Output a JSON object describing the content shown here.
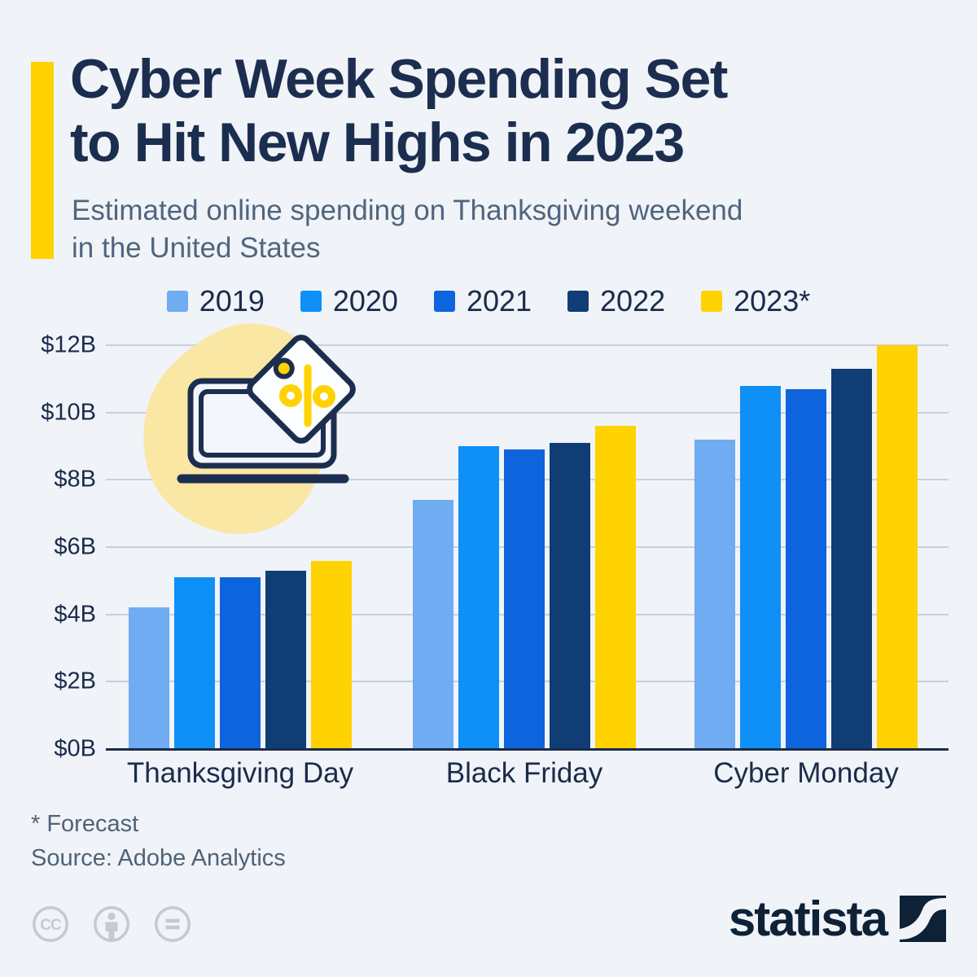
{
  "header": {
    "title_line1": "Cyber Week Spending Set",
    "title_line2": "to Hit New Highs in 2023",
    "subtitle_line1": "Estimated online spending on Thanksgiving weekend",
    "subtitle_line2": "in the United States"
  },
  "chart_data": {
    "type": "bar",
    "title": "Cyber Week Spending Set to Hit New Highs in 2023",
    "subtitle": "Estimated online spending on Thanksgiving weekend in the United States",
    "categories": [
      "Thanksgiving Day",
      "Black Friday",
      "Cyber Monday"
    ],
    "series": [
      {
        "name": "2019",
        "color": "#6FACF1",
        "values": [
          4.2,
          7.4,
          9.2
        ]
      },
      {
        "name": "2020",
        "color": "#0F90F6",
        "values": [
          5.1,
          9.0,
          10.8
        ]
      },
      {
        "name": "2021",
        "color": "#0D64DC",
        "values": [
          5.1,
          8.9,
          10.7
        ]
      },
      {
        "name": "2022",
        "color": "#0F3D74",
        "values": [
          5.3,
          9.1,
          11.3
        ]
      },
      {
        "name": "2023*",
        "color": "#FFD201",
        "values": [
          5.6,
          9.6,
          12.0
        ]
      }
    ],
    "yticks": [
      0,
      2,
      4,
      6,
      8,
      10,
      12
    ],
    "ytick_labels": [
      "$0B",
      "$2B",
      "$4B",
      "$6B",
      "$8B",
      "$10B",
      "$12B"
    ],
    "ylim": [
      0,
      12
    ],
    "grid": true,
    "legend_position": "top"
  },
  "footer": {
    "footnote": "* Forecast",
    "source": "Source: Adobe Analytics",
    "brand": "statista"
  },
  "icons": {
    "cc_label": "CC",
    "cc_icons": [
      "creative-commons",
      "attribution-person",
      "no-derivatives-equals"
    ],
    "illustration": "laptop-with-percent-price-tag"
  },
  "colors": {
    "background": "#F0F3F8",
    "accent_yellow": "#FFD201",
    "title_navy": "#1C2E4F",
    "subtitle_gray": "#50657D",
    "grid_gray": "#C8D0DC",
    "axis_navy": "#1B2B4A",
    "blob_yellow": "#FAE7A4",
    "license_gray": "#C4CAD4",
    "brand_navy": "#0D2137"
  }
}
